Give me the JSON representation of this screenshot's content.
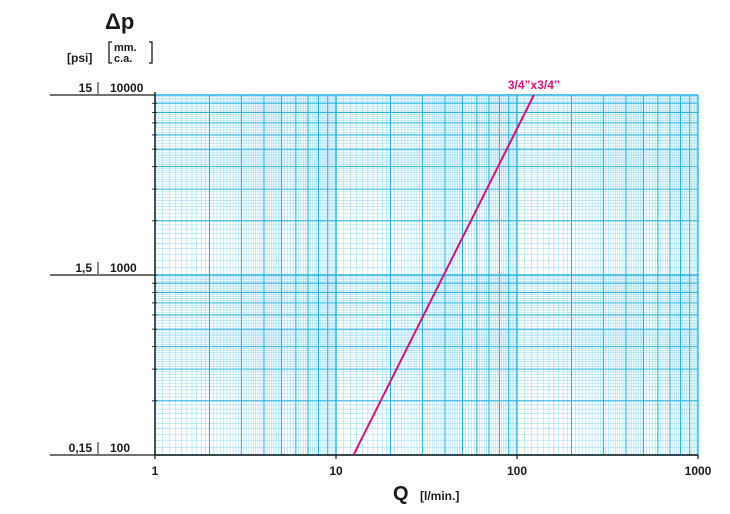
{
  "chart_data": {
    "type": "line",
    "title": "",
    "ylabel": "Δp",
    "xlabel": "Q",
    "xunit": "[l/min.]",
    "yunit_primary": "[psi]",
    "yunit_secondary": [
      "mm.",
      "c.a."
    ],
    "xscale": "log",
    "yscale": "log",
    "xlim": [
      1,
      1000
    ],
    "ylim": [
      100,
      10000
    ],
    "grid": true,
    "xticks": [
      {
        "value": 1,
        "label": "1"
      },
      {
        "value": 10,
        "label": "10"
      },
      {
        "value": 100,
        "label": "100"
      },
      {
        "value": 1000,
        "label": "1000"
      }
    ],
    "yticks": [
      {
        "value": 10000,
        "psi": "15",
        "mm": "10000"
      },
      {
        "value": 1000,
        "psi": "1,5",
        "mm": "1000"
      },
      {
        "value": 100,
        "psi": "0,15",
        "mm": "100"
      }
    ],
    "series": [
      {
        "name": "3/4”x3/4”",
        "color": "#d6137c",
        "x": [
          12.5,
          124
        ],
        "y": [
          100,
          10000
        ]
      }
    ]
  },
  "colors": {
    "grid": "#27b4e3",
    "grid_minor": "#9fdcf3",
    "axis": "#1a1a1a",
    "series": "#d6137c"
  }
}
